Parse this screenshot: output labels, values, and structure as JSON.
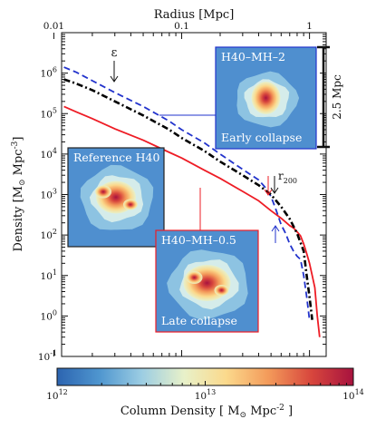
{
  "chart_data": {
    "type": "line",
    "x_scale": "log",
    "y_scale": "log",
    "xlim": [
      0.0115,
      1.35
    ],
    "ylim": [
      0.1,
      10000000
    ],
    "xlabel": "Radius [Mpc]",
    "ylabel_main": "Density ",
    "ylabel_unit_open": "[M",
    "ylabel_unit_close": " Mpc",
    "ylabel_exp": "-3",
    "ylabel_bracket_end": "]",
    "x_ticks": [
      {
        "value": 0.01,
        "label": "0.01"
      },
      {
        "value": 0.1,
        "label": "0.1"
      },
      {
        "value": 1,
        "label": "1"
      }
    ],
    "y_ticks": [
      {
        "value": 0.1,
        "base": "10",
        "exp": "-1"
      },
      {
        "value": 1,
        "base": "10",
        "exp": "0"
      },
      {
        "value": 10,
        "base": "10",
        "exp": "1"
      },
      {
        "value": 100,
        "base": "10",
        "exp": "2"
      },
      {
        "value": 1000,
        "base": "10",
        "exp": "3"
      },
      {
        "value": 10000,
        "base": "10",
        "exp": "4"
      },
      {
        "value": 100000,
        "base": "10",
        "exp": "5"
      },
      {
        "value": 1000000,
        "base": "10",
        "exp": "6"
      }
    ],
    "series": [
      {
        "color": "#ee1c25",
        "style": "solid",
        "x": [
          0.012,
          0.015,
          0.02,
          0.03,
          0.05,
          0.08,
          0.1,
          0.15,
          0.2,
          0.3,
          0.4,
          0.5,
          0.6,
          0.7,
          0.75,
          0.8,
          0.85,
          0.9,
          0.95,
          1.0,
          1.05,
          1.1,
          1.15,
          1.2
        ],
        "y": [
          150000,
          110000,
          75000,
          42000,
          22000,
          11000,
          8000,
          4000,
          2500,
          1200,
          700,
          400,
          260,
          170,
          150,
          120,
          95,
          60,
          35,
          20,
          10,
          5,
          1,
          0.3
        ]
      },
      {
        "color": "#2233cc",
        "style": "dashed",
        "x": [
          0.012,
          0.015,
          0.02,
          0.03,
          0.05,
          0.08,
          0.1,
          0.15,
          0.2,
          0.3,
          0.4,
          0.45,
          0.5,
          0.55,
          0.6,
          0.65,
          0.7,
          0.75,
          0.8,
          0.85,
          0.9,
          0.95,
          1.0
        ],
        "y": [
          1400000,
          1050000,
          650000,
          330000,
          150000,
          65000,
          40000,
          19000,
          10000,
          4200,
          2300,
          1500,
          900,
          400,
          180,
          110,
          60,
          40,
          30,
          25,
          10,
          3,
          0.8
        ]
      },
      {
        "color": "#000000",
        "style": "dashdot",
        "x": [
          0.012,
          0.015,
          0.02,
          0.03,
          0.05,
          0.08,
          0.1,
          0.15,
          0.2,
          0.3,
          0.4,
          0.5,
          0.6,
          0.7,
          0.8,
          0.9,
          0.95,
          1.0,
          1.05
        ],
        "y": [
          700000,
          550000,
          380000,
          200000,
          90000,
          40000,
          25000,
          12000,
          6500,
          3000,
          1700,
          1000,
          500,
          250,
          110,
          40,
          10,
          3,
          0.8
        ]
      }
    ],
    "annotations": {
      "epsilon": {
        "label": "ε",
        "x": 0.027
      },
      "r200": {
        "label_base": "r",
        "label_sub": "200",
        "x": 0.44
      },
      "scale_bar_label": "2.5 Mpc"
    },
    "insets": [
      {
        "title": "H40–MH–2",
        "caption": "Early collapse",
        "border": "#2233cc",
        "blob": "compact"
      },
      {
        "title": "Reference H40",
        "caption": "",
        "border": "#222222",
        "blob": "medium"
      },
      {
        "title": "H40–MH–0.5",
        "caption": "Late collapse",
        "border": "#ee1c25",
        "blob": "clumpy"
      }
    ],
    "colorbar": {
      "label_main": "Column Density  ",
      "label_unit_open": "[ M",
      "label_unit_close": " Mpc",
      "label_exp": "-2",
      "label_bracket_end": " ]",
      "vmin": 1000000000000,
      "vmax": 100000000000000,
      "ticks": [
        {
          "value": 1000000000000,
          "base": "10",
          "exp": "12"
        },
        {
          "value": 10000000000000,
          "base": "10",
          "exp": "13"
        },
        {
          "value": 100000000000000,
          "base": "10",
          "exp": "14"
        }
      ],
      "colors": [
        "#2c64b0",
        "#4f96cf",
        "#9ccde3",
        "#e8f1c9",
        "#fbd98c",
        "#f39a5a",
        "#d8473d",
        "#a7123e"
      ]
    }
  }
}
